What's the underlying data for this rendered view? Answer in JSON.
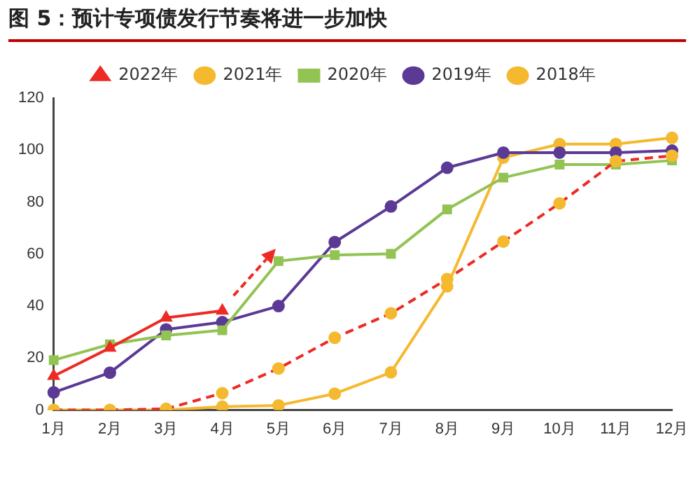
{
  "chart_data": {
    "type": "line",
    "title": "图 5：预计专项债发行节奏将进一步加快",
    "categories": [
      "1月",
      "2月",
      "3月",
      "4月",
      "5月",
      "6月",
      "7月",
      "8月",
      "9月",
      "10月",
      "11月",
      "12月"
    ],
    "series": [
      {
        "name": "2022年",
        "color": "#ee2a24",
        "marker": "triangle",
        "line_style": "solid",
        "values": [
          13.1,
          23.9,
          35.5,
          38.2,
          null,
          null,
          null,
          null,
          null,
          null,
          null,
          null
        ]
      },
      {
        "name": "2021年",
        "color": "#ee2a24",
        "marker": "circle",
        "line_style": "dashed",
        "values": [
          0,
          0,
          0.5,
          6.5,
          16,
          27.8,
          37.2,
          50.4,
          64.8,
          79.5,
          95.7,
          97.8
        ]
      },
      {
        "name": "2020年",
        "color": "#92c353",
        "marker": "square",
        "line_style": "solid",
        "values": [
          19.2,
          25.3,
          28.7,
          30.7,
          57.3,
          59.6,
          60.1,
          77.2,
          89.4,
          94.4,
          94.4,
          96
        ]
      },
      {
        "name": "2019年",
        "color": "#5b3a96",
        "marker": "circle",
        "line_style": "solid",
        "values": [
          6.8,
          14.4,
          31,
          33.8,
          40,
          64.6,
          78.3,
          93.2,
          99,
          99,
          99,
          99.8
        ]
      },
      {
        "name": "2018年",
        "color": "#f5b930",
        "marker": "circle",
        "line_style": "solid",
        "values": [
          0,
          0,
          0,
          1.3,
          1.8,
          6.3,
          14.5,
          47.6,
          97.1,
          102.3,
          102.3,
          104.7
        ]
      }
    ],
    "ylim": [
      0,
      120
    ],
    "yticks": [
      0,
      20,
      40,
      60,
      80,
      100,
      120
    ],
    "grid": false,
    "legend": "top"
  }
}
